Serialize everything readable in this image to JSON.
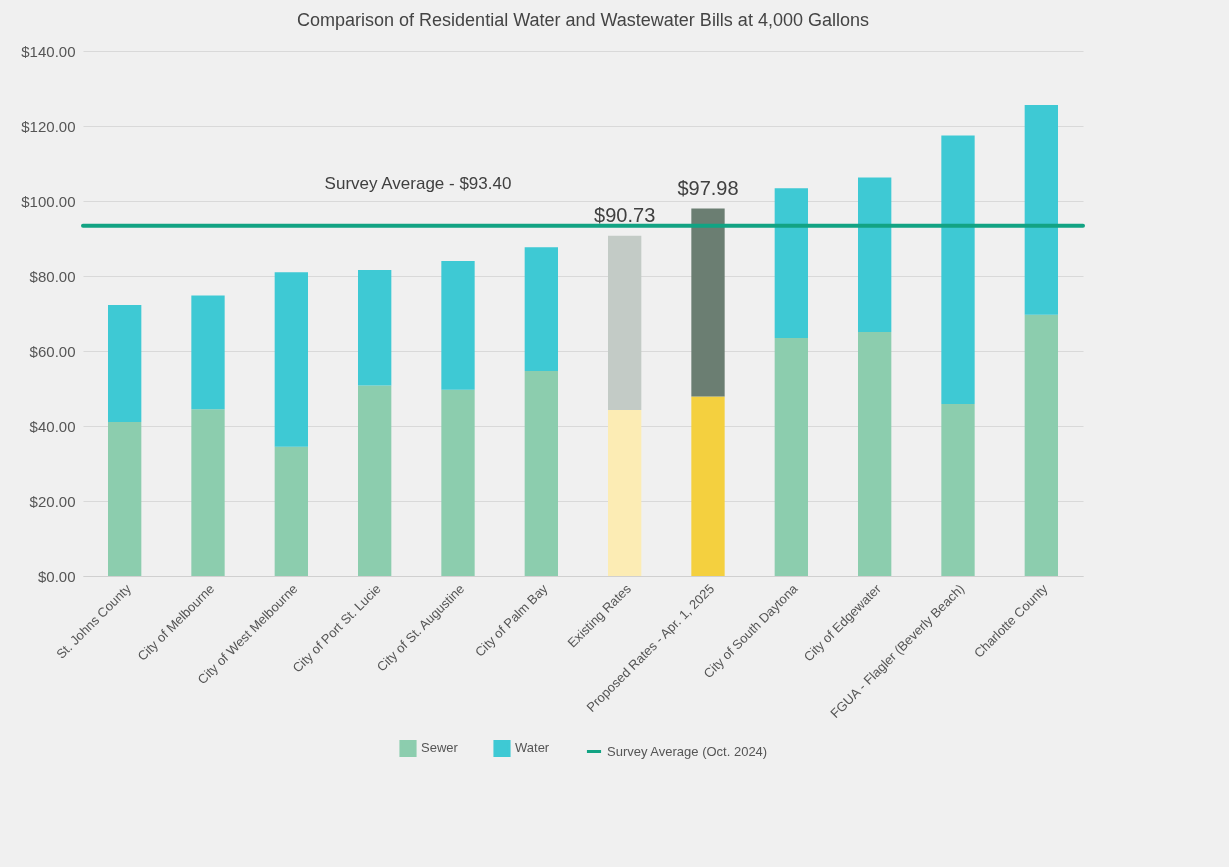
{
  "chart_data": {
    "type": "bar",
    "title": "Comparison of Residential Water and Wastewater Bills at 4,000 Gallons",
    "categories": [
      "St. Johns County",
      "City of Melbourne",
      "City of West Melbourne",
      "City of Port St. Lucie",
      "City of St. Augustine",
      "City of Palm Bay",
      "Existing Rates",
      "Proposed Rates - Apr. 1, 2025",
      "City of South Daytona",
      "City of Edgewater",
      "FGUA - Flagler (Beverly Beach)",
      "Charlotte County"
    ],
    "stacked": true,
    "series": [
      {
        "name": "Sewer",
        "color": "#8ccdae",
        "colors": [
          "#8ccdae",
          "#8ccdae",
          "#8ccdae",
          "#8ccdae",
          "#8ccdae",
          "#8ccdae",
          "#fcecb4",
          "#f4d03f",
          "#8ccdae",
          "#8ccdae",
          "#8ccdae",
          "#8ccdae"
        ],
        "values": [
          41.1,
          44.5,
          34.5,
          50.8,
          49.7,
          54.7,
          44.3,
          47.9,
          63.5,
          65.1,
          45.9,
          69.7
        ]
      },
      {
        "name": "Water",
        "color": "#3ec9d4",
        "colors": [
          "#3ec9d4",
          "#3ec9d4",
          "#3ec9d4",
          "#3ec9d4",
          "#3ec9d4",
          "#3ec9d4",
          "#c3cbc6",
          "#6b7e72",
          "#3ec9d4",
          "#3ec9d4",
          "#3ec9d4",
          "#3ec9d4"
        ],
        "values": [
          31.2,
          30.3,
          46.5,
          30.8,
          34.3,
          33.0,
          46.43,
          50.08,
          39.9,
          41.2,
          71.6,
          55.9
        ]
      }
    ],
    "totals": [
      null,
      null,
      null,
      null,
      null,
      null,
      "$90.73",
      "$97.98",
      null,
      null,
      null,
      null
    ],
    "ylim": [
      0,
      140
    ],
    "yticks": [
      {
        "value": 0,
        "label": "$0.00"
      },
      {
        "value": 20,
        "label": "$20.00"
      },
      {
        "value": 40,
        "label": "$40.00"
      },
      {
        "value": 60,
        "label": "$60.00"
      },
      {
        "value": 80,
        "label": "$80.00"
      },
      {
        "value": 100,
        "label": "$100.00"
      },
      {
        "value": 120,
        "label": "$120.00"
      },
      {
        "value": 140,
        "label": "$140.00"
      }
    ],
    "grid": "y",
    "legend": "bottom",
    "ref_lines": [
      {
        "axis": "y",
        "value": 93.4,
        "label": "Survey Average (Oct. 2024)",
        "color": "#12a383"
      }
    ],
    "annotations": [
      {
        "text": "Survey Average  - $93.40",
        "x": "City of St. Augustine",
        "y": 93.4
      }
    ]
  }
}
